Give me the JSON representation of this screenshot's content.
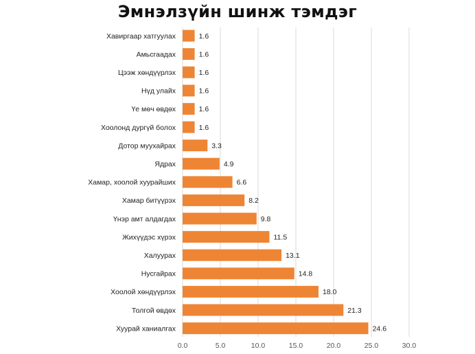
{
  "chart_data": {
    "type": "bar",
    "orientation": "horizontal",
    "title": "Эмнэлзүйн шинж тэмдэг",
    "categories": [
      "Хавиргаар хатгуулах",
      "Амьсгаадах",
      "Цээж хөндүүрлэх",
      "Нүд улайх",
      "Үе мөч өвдөх",
      "Хоолонд дургүй болох",
      "Дотор муухайрах",
      "Ядрах",
      "Хамар, хоолой хуурайших",
      "Хамар битүүрэх",
      "Үнэр амт алдагдах",
      "Жихүүдэс хүрэх",
      "Халуурах",
      "Нусгайрах",
      "Хоолой хөндүүрлэх",
      "Толгой өвдөх",
      "Хуурай ханиалгах"
    ],
    "values": [
      1.6,
      1.6,
      1.6,
      1.6,
      1.6,
      1.6,
      3.3,
      4.9,
      6.6,
      8.2,
      9.8,
      11.5,
      13.1,
      14.8,
      18.0,
      21.3,
      24.6
    ],
    "value_labels": [
      "1.6",
      "1.6",
      "1.6",
      "1.6",
      "1.6",
      "1.6",
      "3.3",
      "4.9",
      "6.6",
      "8.2",
      "9.8",
      "11.5",
      "13.1",
      "14.8",
      "18.0",
      "21.3",
      "24.6"
    ],
    "xlim": [
      0,
      30
    ],
    "x_ticks": [
      "0.0",
      "5.0",
      "10.0",
      "15.0",
      "20.0",
      "25.0",
      "30.0"
    ],
    "grid": true,
    "bar_color": "#ee8535",
    "legend": "none"
  }
}
